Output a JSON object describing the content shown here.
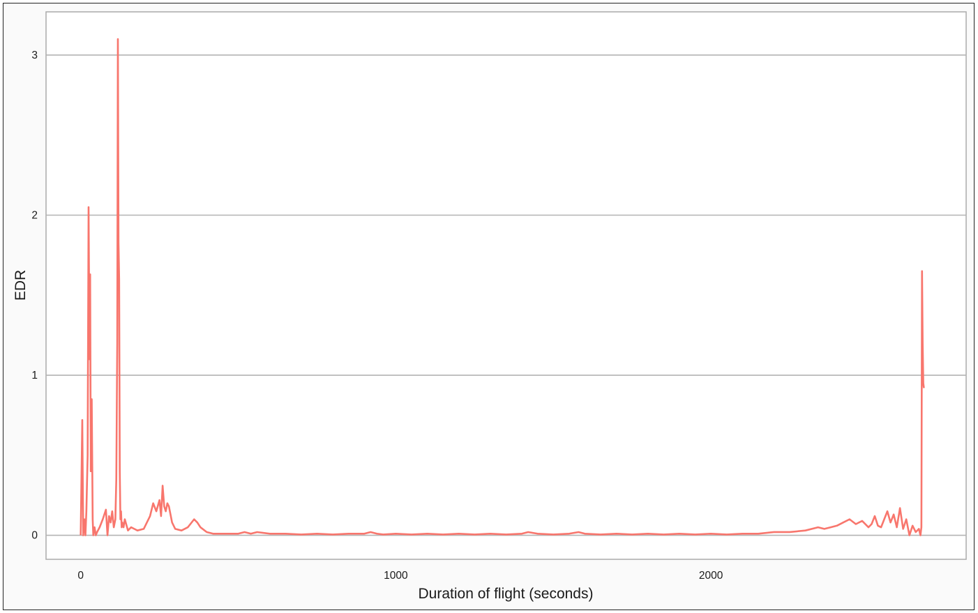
{
  "chart_data": {
    "type": "line",
    "title": "",
    "xlabel": "Duration of flight (seconds)",
    "ylabel": "EDR",
    "xlim": [
      -110,
      2810
    ],
    "ylim": [
      -0.15,
      3.27
    ],
    "x_ticks": [
      0,
      1000,
      2000
    ],
    "y_ticks": [
      0,
      1,
      2,
      3
    ],
    "grid": {
      "horizontal": true,
      "vertical": false
    },
    "legend": "none",
    "series": [
      {
        "color": "#f8766d",
        "x": [
          0,
          5,
          8,
          12,
          15,
          18,
          22,
          25,
          28,
          30,
          32,
          35,
          38,
          40,
          44,
          48,
          52,
          60,
          70,
          80,
          85,
          90,
          95,
          100,
          105,
          110,
          113,
          116,
          118,
          120,
          122,
          124,
          126,
          128,
          130,
          132,
          136,
          140,
          150,
          160,
          170,
          180,
          200,
          220,
          230,
          240,
          250,
          255,
          260,
          265,
          270,
          275,
          280,
          290,
          300,
          320,
          340,
          360,
          370,
          380,
          400,
          420,
          450,
          500,
          520,
          540,
          560,
          600,
          650,
          700,
          750,
          800,
          850,
          900,
          920,
          940,
          960,
          1000,
          1050,
          1100,
          1150,
          1200,
          1250,
          1300,
          1350,
          1400,
          1420,
          1450,
          1500,
          1550,
          1580,
          1600,
          1650,
          1700,
          1750,
          1800,
          1850,
          1900,
          1950,
          2000,
          2050,
          2100,
          2150,
          2200,
          2250,
          2300,
          2340,
          2360,
          2380,
          2400,
          2420,
          2440,
          2460,
          2480,
          2500,
          2510,
          2520,
          2530,
          2540,
          2550,
          2560,
          2570,
          2580,
          2590,
          2600,
          2610,
          2620,
          2630,
          2640,
          2650,
          2660,
          2665,
          2668,
          2670,
          2672,
          2674,
          2676
        ],
        "y": [
          0.0,
          0.72,
          0.0,
          0.1,
          0.0,
          0.15,
          0.5,
          2.05,
          1.1,
          1.63,
          0.4,
          0.85,
          0.1,
          0.0,
          0.05,
          0.0,
          0.02,
          0.05,
          0.1,
          0.16,
          0.0,
          0.12,
          0.08,
          0.15,
          0.05,
          0.1,
          0.35,
          1.2,
          3.1,
          1.83,
          1.6,
          0.4,
          0.1,
          0.15,
          0.05,
          0.08,
          0.05,
          0.1,
          0.03,
          0.05,
          0.04,
          0.03,
          0.04,
          0.12,
          0.2,
          0.15,
          0.22,
          0.12,
          0.31,
          0.18,
          0.15,
          0.2,
          0.18,
          0.08,
          0.04,
          0.03,
          0.05,
          0.1,
          0.08,
          0.05,
          0.02,
          0.01,
          0.01,
          0.01,
          0.02,
          0.01,
          0.02,
          0.01,
          0.01,
          0.005,
          0.01,
          0.005,
          0.01,
          0.01,
          0.02,
          0.01,
          0.005,
          0.01,
          0.005,
          0.01,
          0.005,
          0.01,
          0.005,
          0.01,
          0.005,
          0.01,
          0.02,
          0.01,
          0.005,
          0.01,
          0.02,
          0.01,
          0.005,
          0.01,
          0.005,
          0.01,
          0.005,
          0.01,
          0.005,
          0.01,
          0.005,
          0.01,
          0.01,
          0.02,
          0.02,
          0.03,
          0.05,
          0.04,
          0.05,
          0.06,
          0.08,
          0.1,
          0.07,
          0.09,
          0.05,
          0.07,
          0.12,
          0.06,
          0.05,
          0.1,
          0.15,
          0.08,
          0.13,
          0.05,
          0.17,
          0.04,
          0.1,
          0.0,
          0.06,
          0.02,
          0.04,
          0.0,
          0.05,
          1.65,
          1.2,
          0.95,
          0.92
        ]
      }
    ]
  }
}
